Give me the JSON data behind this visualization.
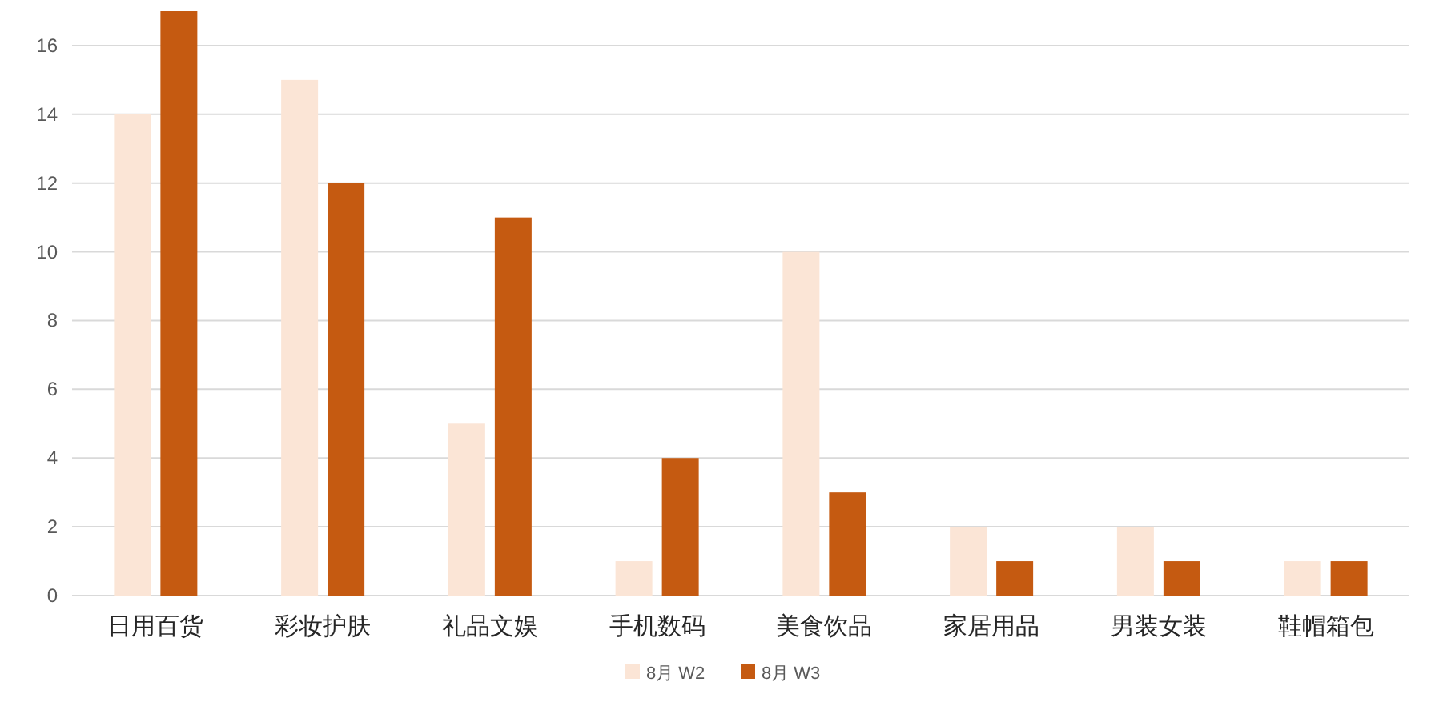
{
  "chart_data": {
    "type": "bar",
    "categories": [
      "日用百货",
      "彩妆护肤",
      "礼品文娱",
      "手机数码",
      "美食饮品",
      "家居用品",
      "男装女装",
      "鞋帽箱包"
    ],
    "series": [
      {
        "name": "8月 W2",
        "color": "#fbe5d6",
        "values": [
          14,
          15,
          5,
          1,
          10,
          2,
          2,
          1
        ]
      },
      {
        "name": "8月 W3",
        "color": "#c55a11",
        "values": [
          17,
          12,
          11,
          4,
          3,
          1,
          1,
          1
        ]
      }
    ],
    "ylim": [
      0,
      17
    ],
    "yticks": [
      0,
      2,
      4,
      6,
      8,
      10,
      12,
      14,
      16
    ],
    "grid": "y",
    "legend": "bottom"
  }
}
